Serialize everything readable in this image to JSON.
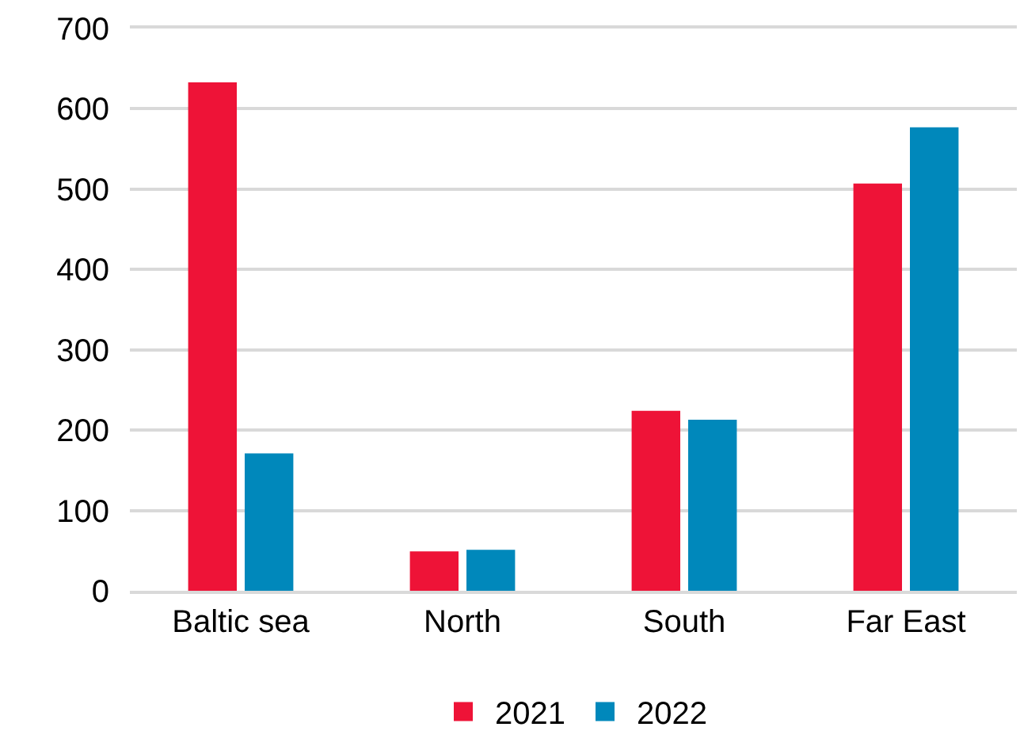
{
  "chart_data": {
    "type": "bar",
    "categories": [
      "Baltic sea",
      "North",
      "South",
      "Far East"
    ],
    "series": [
      {
        "name": "2021",
        "color": "#ee1337",
        "values": [
          633,
          49,
          224,
          507
        ]
      },
      {
        "name": "2022",
        "color": "#0088bb",
        "values": [
          171,
          51,
          213,
          577
        ]
      }
    ],
    "ylim": [
      0,
      700
    ],
    "yticks": [
      0,
      100,
      200,
      300,
      400,
      500,
      600,
      700
    ],
    "grid": "y",
    "legend": "bottom"
  }
}
